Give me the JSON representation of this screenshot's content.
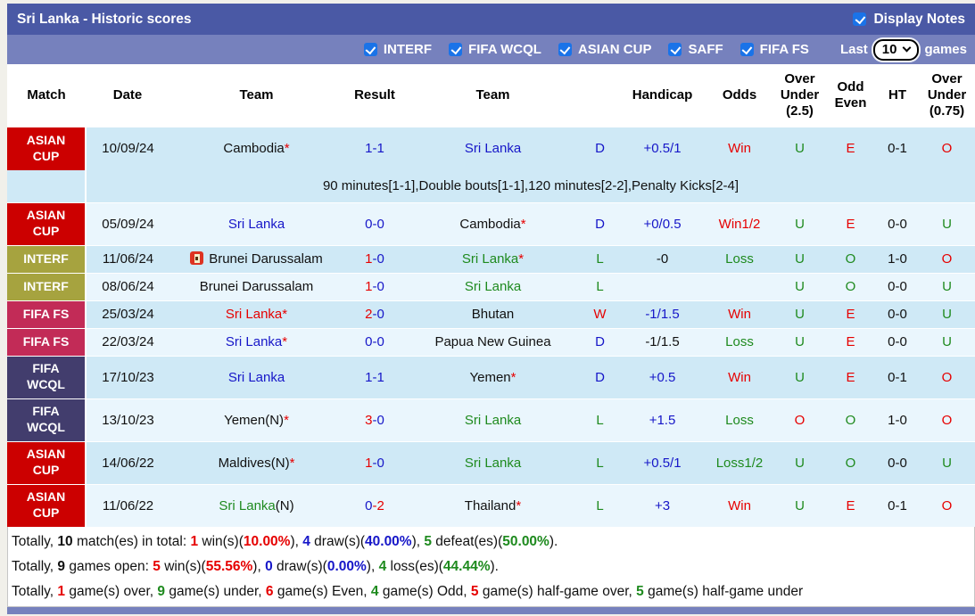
{
  "title_bar": {
    "title": "Sri Lanka - Historic scores",
    "display_notes_label": "Display Notes",
    "display_notes_checked": true
  },
  "toolbar": {
    "filters": [
      {
        "label": "INTERF",
        "checked": true
      },
      {
        "label": "FIFA WCQL",
        "checked": true
      },
      {
        "label": "ASIAN CUP",
        "checked": true
      },
      {
        "label": "SAFF",
        "checked": true
      },
      {
        "label": "FIFA FS",
        "checked": true
      }
    ],
    "last_label": "Last",
    "last_value": "10",
    "games_label": "games"
  },
  "theme": {
    "titlebar_bg": "#4a59a5",
    "toolbar_bg": "#7681bd",
    "row_blue": "#cfe9f6",
    "row_pale": "#eaf6fd",
    "checkbox_blue": "#1a73e8"
  },
  "colors": {
    "blue": "#1616c8",
    "red": "#e60000",
    "green": "#1e8a1e",
    "black": "#111111"
  },
  "table": {
    "headers": [
      {
        "key": "match",
        "label": "Match"
      },
      {
        "key": "date",
        "label": "Date"
      },
      {
        "key": "team-home",
        "label": "Team"
      },
      {
        "key": "result",
        "label": "Result"
      },
      {
        "key": "team-away",
        "label": "Team"
      },
      {
        "key": "result-letter",
        "label": ""
      },
      {
        "key": "handicap",
        "label": "Handicap"
      },
      {
        "key": "odds",
        "label": "Odds"
      },
      {
        "key": "over-under-2-5",
        "label": "Over\nUnder\n(2.5)"
      },
      {
        "key": "odd-even",
        "label": "Odd\nEven"
      },
      {
        "key": "ht",
        "label": "HT"
      },
      {
        "key": "over-under-0-75",
        "label": "Over\nUnder\n(0.75)"
      }
    ],
    "comp_colors": {
      "asian": "#cc0000",
      "interf": "#a6a33f",
      "fifa_fs": "#c22b57",
      "fifa_wcql": "#423d6d"
    },
    "rows": [
      {
        "comp": "ASIAN\nCUP",
        "comp_key": "asian",
        "size": "first",
        "shade": "blue",
        "date": "10/09/24",
        "home": {
          "parts": [
            {
              "t": "Cambodia",
              "c": "black"
            }
          ],
          "star": true
        },
        "score": [
          {
            "t": "1-1",
            "c": "blue"
          }
        ],
        "away": {
          "parts": [
            {
              "t": "Sri Lanka",
              "c": "blue"
            }
          ],
          "star": false
        },
        "letter": {
          "t": "D",
          "c": "blue"
        },
        "handicap": {
          "t": "+0.5/1",
          "c": "blue"
        },
        "odds": {
          "t": "Win",
          "c": "red"
        },
        "ou25": {
          "t": "U",
          "c": "green"
        },
        "odd_even": {
          "t": "E",
          "c": "red"
        },
        "ht": {
          "t": "0-1",
          "c": "black"
        },
        "ou075": {
          "t": "O",
          "c": "red"
        },
        "note": "90 minutes[1-1],Double bouts[1-1],120 minutes[2-2],Penalty Kicks[2-4]"
      },
      {
        "comp": "ASIAN\nCUP",
        "comp_key": "asian",
        "size": "tall",
        "shade": "pale",
        "date": "05/09/24",
        "home": {
          "parts": [
            {
              "t": "Sri Lanka",
              "c": "blue"
            }
          ],
          "star": false
        },
        "score": [
          {
            "t": "0-0",
            "c": "blue"
          }
        ],
        "away": {
          "parts": [
            {
              "t": "Cambodia",
              "c": "black"
            }
          ],
          "star": true
        },
        "letter": {
          "t": "D",
          "c": "blue"
        },
        "handicap": {
          "t": "+0/0.5",
          "c": "blue"
        },
        "odds": {
          "t": "Win1/2",
          "c": "red"
        },
        "ou25": {
          "t": "U",
          "c": "green"
        },
        "odd_even": {
          "t": "E",
          "c": "red"
        },
        "ht": {
          "t": "0-0",
          "c": "black"
        },
        "ou075": {
          "t": "U",
          "c": "green"
        }
      },
      {
        "comp": "INTERF",
        "comp_key": "interf",
        "size": "short",
        "shade": "blue",
        "date": "11/06/24",
        "home": {
          "icon": true,
          "parts": [
            {
              "t": "Brunei Darussalam",
              "c": "black"
            }
          ],
          "star": false
        },
        "score": [
          {
            "t": "1",
            "c": "red"
          },
          {
            "t": "-0",
            "c": "blue"
          }
        ],
        "away": {
          "parts": [
            {
              "t": "Sri Lanka",
              "c": "green"
            }
          ],
          "star": true
        },
        "letter": {
          "t": "L",
          "c": "green"
        },
        "handicap": {
          "t": "-0",
          "c": "black"
        },
        "odds": {
          "t": "Loss",
          "c": "green"
        },
        "ou25": {
          "t": "U",
          "c": "green"
        },
        "odd_even": {
          "t": "O",
          "c": "green"
        },
        "ht": {
          "t": "1-0",
          "c": "black"
        },
        "ou075": {
          "t": "O",
          "c": "red"
        }
      },
      {
        "comp": "INTERF",
        "comp_key": "interf",
        "size": "short",
        "shade": "pale",
        "date": "08/06/24",
        "home": {
          "parts": [
            {
              "t": "Brunei Darussalam",
              "c": "black"
            }
          ],
          "star": false
        },
        "score": [
          {
            "t": "1",
            "c": "red"
          },
          {
            "t": "-0",
            "c": "blue"
          }
        ],
        "away": {
          "parts": [
            {
              "t": "Sri Lanka",
              "c": "green"
            }
          ],
          "star": false
        },
        "letter": {
          "t": "L",
          "c": "green"
        },
        "handicap": {
          "t": "",
          "c": "black"
        },
        "odds": {
          "t": "",
          "c": "black"
        },
        "ou25": {
          "t": "U",
          "c": "green"
        },
        "odd_even": {
          "t": "O",
          "c": "green"
        },
        "ht": {
          "t": "0-0",
          "c": "black"
        },
        "ou075": {
          "t": "U",
          "c": "green"
        }
      },
      {
        "comp": "FIFA FS",
        "comp_key": "fifa_fs",
        "size": "short",
        "shade": "blue",
        "date": "25/03/24",
        "home": {
          "parts": [
            {
              "t": "Sri Lanka",
              "c": "red"
            }
          ],
          "star": true
        },
        "score": [
          {
            "t": "2",
            "c": "red"
          },
          {
            "t": "-0",
            "c": "blue"
          }
        ],
        "away": {
          "parts": [
            {
              "t": "Bhutan",
              "c": "black"
            }
          ],
          "star": false
        },
        "letter": {
          "t": "W",
          "c": "red"
        },
        "handicap": {
          "t": "-1/1.5",
          "c": "blue"
        },
        "odds": {
          "t": "Win",
          "c": "red"
        },
        "ou25": {
          "t": "U",
          "c": "green"
        },
        "odd_even": {
          "t": "E",
          "c": "red"
        },
        "ht": {
          "t": "0-0",
          "c": "black"
        },
        "ou075": {
          "t": "U",
          "c": "green"
        }
      },
      {
        "comp": "FIFA FS",
        "comp_key": "fifa_fs",
        "size": "short",
        "shade": "pale",
        "date": "22/03/24",
        "home": {
          "parts": [
            {
              "t": "Sri Lanka",
              "c": "blue"
            }
          ],
          "star": true
        },
        "score": [
          {
            "t": "0-0",
            "c": "blue"
          }
        ],
        "away": {
          "parts": [
            {
              "t": "Papua New Guinea",
              "c": "black"
            }
          ],
          "star": false
        },
        "letter": {
          "t": "D",
          "c": "blue"
        },
        "handicap": {
          "t": "-1/1.5",
          "c": "black"
        },
        "odds": {
          "t": "Loss",
          "c": "green"
        },
        "ou25": {
          "t": "U",
          "c": "green"
        },
        "odd_even": {
          "t": "E",
          "c": "red"
        },
        "ht": {
          "t": "0-0",
          "c": "black"
        },
        "ou075": {
          "t": "U",
          "c": "green"
        }
      },
      {
        "comp": "FIFA\nWCQL",
        "comp_key": "fifa_wcql",
        "size": "tall",
        "shade": "blue",
        "date": "17/10/23",
        "home": {
          "parts": [
            {
              "t": "Sri Lanka",
              "c": "blue"
            }
          ],
          "star": false
        },
        "score": [
          {
            "t": "1-1",
            "c": "blue"
          }
        ],
        "away": {
          "parts": [
            {
              "t": "Yemen",
              "c": "black"
            }
          ],
          "star": true
        },
        "letter": {
          "t": "D",
          "c": "blue"
        },
        "handicap": {
          "t": "+0.5",
          "c": "blue"
        },
        "odds": {
          "t": "Win",
          "c": "red"
        },
        "ou25": {
          "t": "U",
          "c": "green"
        },
        "odd_even": {
          "t": "E",
          "c": "red"
        },
        "ht": {
          "t": "0-1",
          "c": "black"
        },
        "ou075": {
          "t": "O",
          "c": "red"
        }
      },
      {
        "comp": "FIFA\nWCQL",
        "comp_key": "fifa_wcql",
        "size": "tall",
        "shade": "pale",
        "date": "13/10/23",
        "home": {
          "parts": [
            {
              "t": "Yemen(N)",
              "c": "black"
            }
          ],
          "star": true
        },
        "score": [
          {
            "t": "3",
            "c": "red"
          },
          {
            "t": "-0",
            "c": "blue"
          }
        ],
        "away": {
          "parts": [
            {
              "t": "Sri Lanka",
              "c": "green"
            }
          ],
          "star": false
        },
        "letter": {
          "t": "L",
          "c": "green"
        },
        "handicap": {
          "t": "+1.5",
          "c": "blue"
        },
        "odds": {
          "t": "Loss",
          "c": "green"
        },
        "ou25": {
          "t": "O",
          "c": "red"
        },
        "odd_even": {
          "t": "O",
          "c": "green"
        },
        "ht": {
          "t": "1-0",
          "c": "black"
        },
        "ou075": {
          "t": "O",
          "c": "red"
        }
      },
      {
        "comp": "ASIAN\nCUP",
        "comp_key": "asian",
        "size": "tall",
        "shade": "blue",
        "date": "14/06/22",
        "home": {
          "parts": [
            {
              "t": "Maldives(N)",
              "c": "black"
            }
          ],
          "star": true
        },
        "score": [
          {
            "t": "1",
            "c": "red"
          },
          {
            "t": "-0",
            "c": "blue"
          }
        ],
        "away": {
          "parts": [
            {
              "t": "Sri Lanka",
              "c": "green"
            }
          ],
          "star": false
        },
        "letter": {
          "t": "L",
          "c": "green"
        },
        "handicap": {
          "t": "+0.5/1",
          "c": "blue"
        },
        "odds": {
          "t": "Loss1/2",
          "c": "green"
        },
        "ou25": {
          "t": "U",
          "c": "green"
        },
        "odd_even": {
          "t": "O",
          "c": "green"
        },
        "ht": {
          "t": "0-0",
          "c": "black"
        },
        "ou075": {
          "t": "U",
          "c": "green"
        }
      },
      {
        "comp": "ASIAN\nCUP",
        "comp_key": "asian",
        "size": "tall",
        "shade": "pale",
        "date": "11/06/22",
        "home": {
          "parts": [
            {
              "t": "Sri Lanka",
              "c": "green"
            },
            {
              "t": "(N)",
              "c": "black"
            }
          ],
          "star": false
        },
        "score": [
          {
            "t": "0",
            "c": "blue"
          },
          {
            "t": "-2",
            "c": "red"
          }
        ],
        "away": {
          "parts": [
            {
              "t": "Thailand",
              "c": "black"
            }
          ],
          "star": true
        },
        "letter": {
          "t": "L",
          "c": "green"
        },
        "handicap": {
          "t": "+3",
          "c": "blue"
        },
        "odds": {
          "t": "Win",
          "c": "red"
        },
        "ou25": {
          "t": "U",
          "c": "green"
        },
        "odd_even": {
          "t": "E",
          "c": "red"
        },
        "ht": {
          "t": "0-1",
          "c": "black"
        },
        "ou075": {
          "t": "O",
          "c": "red"
        }
      }
    ]
  },
  "summary": {
    "lines": [
      [
        {
          "t": "Totally, "
        },
        {
          "t": "10",
          "b": true
        },
        {
          "t": " match(es) in total: "
        },
        {
          "t": "1",
          "b": true,
          "c": "red"
        },
        {
          "t": " win(s)("
        },
        {
          "t": "10.00%",
          "b": true,
          "c": "red"
        },
        {
          "t": "), "
        },
        {
          "t": "4",
          "b": true,
          "c": "blue"
        },
        {
          "t": " draw(s)("
        },
        {
          "t": "40.00%",
          "b": true,
          "c": "blue"
        },
        {
          "t": "), "
        },
        {
          "t": "5",
          "b": true,
          "c": "green"
        },
        {
          "t": " defeat(es)("
        },
        {
          "t": "50.00%",
          "b": true,
          "c": "green"
        },
        {
          "t": ")."
        }
      ],
      [
        {
          "t": "Totally, "
        },
        {
          "t": "9",
          "b": true
        },
        {
          "t": " games open: "
        },
        {
          "t": "5",
          "b": true,
          "c": "red"
        },
        {
          "t": " win(s)("
        },
        {
          "t": "55.56%",
          "b": true,
          "c": "red"
        },
        {
          "t": "), "
        },
        {
          "t": "0",
          "b": true,
          "c": "blue"
        },
        {
          "t": " draw(s)("
        },
        {
          "t": "0.00%",
          "b": true,
          "c": "blue"
        },
        {
          "t": "), "
        },
        {
          "t": "4",
          "b": true,
          "c": "green"
        },
        {
          "t": " loss(es)("
        },
        {
          "t": "44.44%",
          "b": true,
          "c": "green"
        },
        {
          "t": ")."
        }
      ],
      [
        {
          "t": "Totally, "
        },
        {
          "t": "1",
          "b": true,
          "c": "red"
        },
        {
          "t": " game(s) over, "
        },
        {
          "t": "9",
          "b": true,
          "c": "green"
        },
        {
          "t": " game(s) under, "
        },
        {
          "t": "6",
          "b": true,
          "c": "red"
        },
        {
          "t": " game(s) Even, "
        },
        {
          "t": "4",
          "b": true,
          "c": "green"
        },
        {
          "t": " game(s) Odd, "
        },
        {
          "t": "5",
          "b": true,
          "c": "red"
        },
        {
          "t": " game(s) half-game over, "
        },
        {
          "t": "5",
          "b": true,
          "c": "green"
        },
        {
          "t": " game(s) half-game under"
        }
      ]
    ]
  }
}
